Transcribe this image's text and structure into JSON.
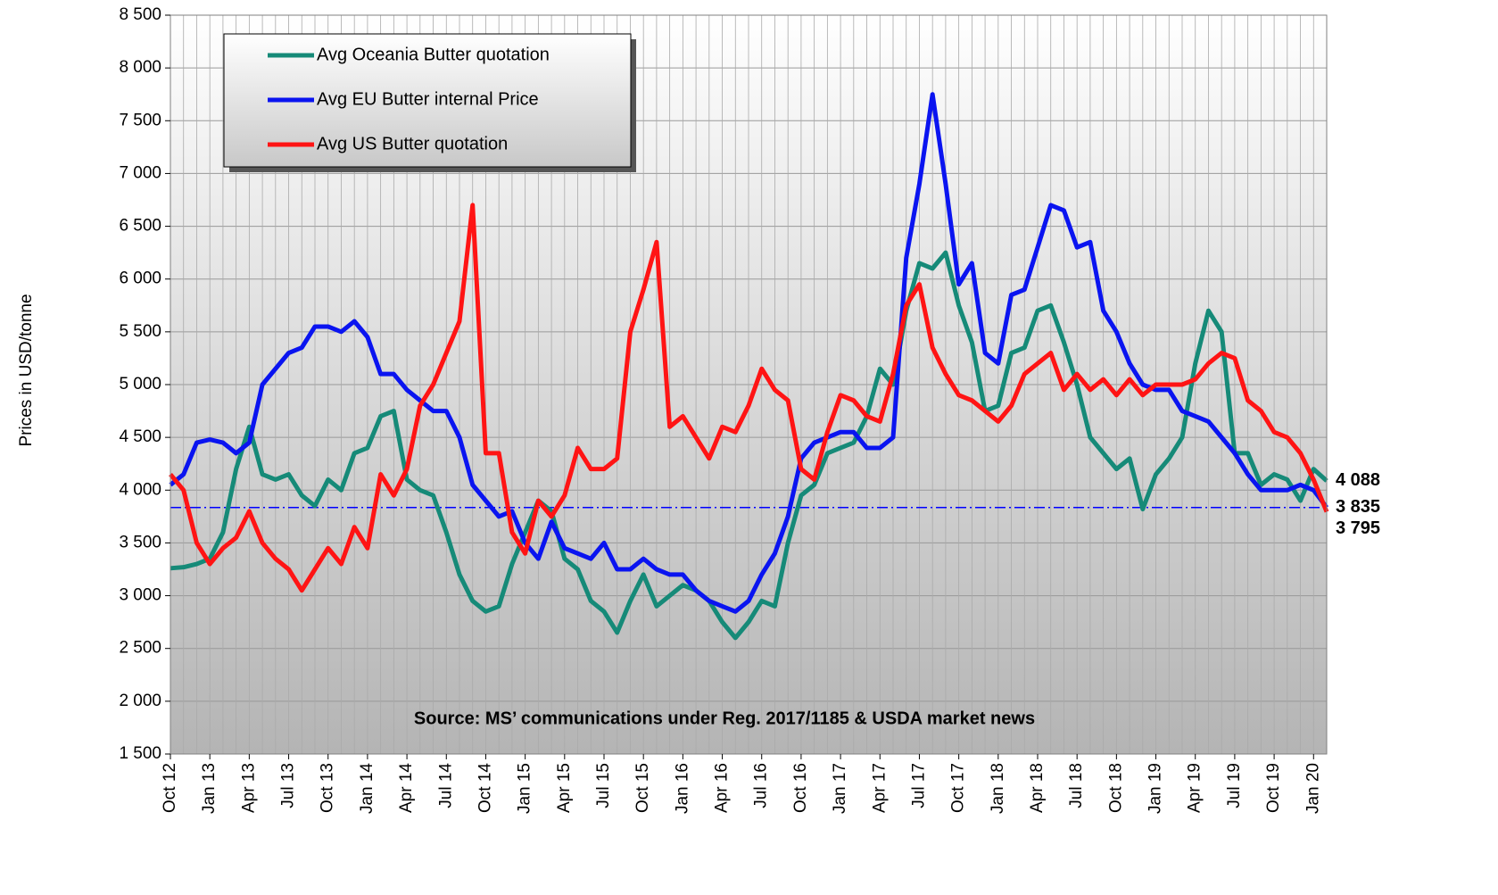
{
  "chart_data": {
    "type": "line",
    "y_label": "Prices in USD/tonne",
    "annotation": "Source: MS’ communications under Reg. 2017/1185  & USDA market news",
    "categories": [
      "Oct 12",
      null,
      null,
      "Jan 13",
      null,
      null,
      "Apr 13",
      null,
      null,
      "Jul 13",
      null,
      null,
      "Oct 13",
      null,
      null,
      "Jan 14",
      null,
      null,
      "Apr 14",
      null,
      null,
      "Jul 14",
      null,
      null,
      "Oct 14",
      null,
      null,
      "Jan 15",
      null,
      null,
      "Apr 15",
      null,
      null,
      "Jul 15",
      null,
      null,
      "Oct 15",
      null,
      null,
      "Jan 16",
      null,
      null,
      "Apr 16",
      null,
      null,
      "Jul 16",
      null,
      null,
      "Oct 16",
      null,
      null,
      "Jan 17",
      null,
      null,
      "Apr 17",
      null,
      null,
      "Jul 17",
      null,
      null,
      "Oct 17",
      null,
      null,
      "Jan 18",
      null,
      null,
      "Apr 18",
      null,
      null,
      "Jul 18",
      null,
      null,
      "Oct 18",
      null,
      null,
      "Jan 19",
      null,
      null,
      "Apr 19",
      null,
      null,
      "Jul 19",
      null,
      null,
      "Oct 19",
      null,
      null,
      "Jan 20",
      null
    ],
    "series": [
      {
        "name": "Avg Oceania Butter quotation",
        "color": "#168a78",
        "label_color": "#2f9a5a",
        "values": [
          3260,
          3270,
          3300,
          3350,
          3600,
          4200,
          4600,
          4150,
          4100,
          4150,
          3950,
          3850,
          4100,
          4000,
          4350,
          4400,
          4700,
          4750,
          4100,
          4000,
          3950,
          3600,
          3200,
          2950,
          2850,
          2900,
          3300,
          3600,
          3900,
          3800,
          3350,
          3250,
          2950,
          2850,
          2650,
          2950,
          3200,
          2900,
          3000,
          3100,
          3050,
          2950,
          2750,
          2600,
          2750,
          2950,
          2900,
          3500,
          3950,
          4050,
          4350,
          4400,
          4450,
          4700,
          5150,
          5000,
          5700,
          6150,
          6100,
          6250,
          5750,
          5400,
          4750,
          4800,
          5300,
          5350,
          5700,
          5750,
          5400,
          5000,
          4500,
          4350,
          4200,
          4300,
          3820,
          4150,
          4300,
          4500,
          5200,
          5700,
          5500,
          4350,
          4350,
          4050,
          4150,
          4100,
          3900,
          4200,
          4088
        ],
        "last_label": "4 088"
      },
      {
        "name": "Avg EU Butter internal Price",
        "color": "#0a14f0",
        "label_color": "#1010e0",
        "values": [
          4050,
          4150,
          4450,
          4480,
          4450,
          4350,
          4450,
          5000,
          5150,
          5300,
          5350,
          5550,
          5550,
          5500,
          5600,
          5450,
          5100,
          5100,
          4950,
          4850,
          4750,
          4750,
          4500,
          4050,
          3900,
          3750,
          3800,
          3500,
          3350,
          3700,
          3450,
          3400,
          3350,
          3500,
          3250,
          3250,
          3350,
          3250,
          3200,
          3200,
          3050,
          2950,
          2900,
          2850,
          2950,
          3200,
          3400,
          3750,
          4300,
          4450,
          4500,
          4550,
          4550,
          4400,
          4400,
          4500,
          6200,
          6900,
          7750,
          6900,
          5950,
          6150,
          5300,
          5200,
          5850,
          5900,
          6300,
          6700,
          6650,
          6300,
          6350,
          5700,
          5500,
          5200,
          5000,
          4950,
          4950,
          4750,
          4700,
          4650,
          4500,
          4350,
          4150,
          4000,
          4000,
          4000,
          4050,
          4000,
          3835
        ],
        "last_label": "3 835"
      },
      {
        "name": "Avg US Butter quotation",
        "color": "#ff1414",
        "label_color": "#ff1414",
        "values": [
          4150,
          4000,
          3500,
          3300,
          3450,
          3550,
          3800,
          3500,
          3350,
          3250,
          3050,
          3250,
          3450,
          3300,
          3650,
          3450,
          4150,
          3950,
          4200,
          4800,
          5000,
          5300,
          5600,
          6700,
          4350,
          4350,
          3600,
          3400,
          3900,
          3750,
          3950,
          4400,
          4200,
          4200,
          4300,
          5500,
          5900,
          6350,
          4600,
          4700,
          4500,
          4300,
          4600,
          4550,
          4800,
          5150,
          4950,
          4850,
          4200,
          4100,
          4550,
          4900,
          4850,
          4700,
          4650,
          5100,
          5750,
          5950,
          5350,
          5100,
          4900,
          4850,
          4750,
          4650,
          4800,
          5100,
          5200,
          5300,
          4950,
          5100,
          4950,
          5050,
          4900,
          5050,
          4900,
          5000,
          5000,
          5000,
          5050,
          5200,
          5300,
          5250,
          4850,
          4750,
          4550,
          4500,
          4350,
          4100,
          3795
        ],
        "last_label": "3 795"
      }
    ],
    "reference_line": {
      "value": 3835,
      "color": "#0000ff"
    },
    "ylim": [
      1500,
      8500
    ],
    "yticks": [
      {
        "value": 1500,
        "label": "1 500"
      },
      {
        "value": 2000,
        "label": "2 000"
      },
      {
        "value": 2500,
        "label": "2 500"
      },
      {
        "value": 3000,
        "label": "3 000"
      },
      {
        "value": 3500,
        "label": "3 500"
      },
      {
        "value": 4000,
        "label": "4 000"
      },
      {
        "value": 4500,
        "label": "4 500"
      },
      {
        "value": 5000,
        "label": "5 000"
      },
      {
        "value": 5500,
        "label": "5 500"
      },
      {
        "value": 6000,
        "label": "6 000"
      },
      {
        "value": 6500,
        "label": "6 500"
      },
      {
        "value": 7000,
        "label": "7 000"
      },
      {
        "value": 7500,
        "label": "7 500"
      },
      {
        "value": 8000,
        "label": "8 000"
      },
      {
        "value": 8500,
        "label": "8 500"
      }
    ],
    "grid": true,
    "legend": "upper left"
  }
}
